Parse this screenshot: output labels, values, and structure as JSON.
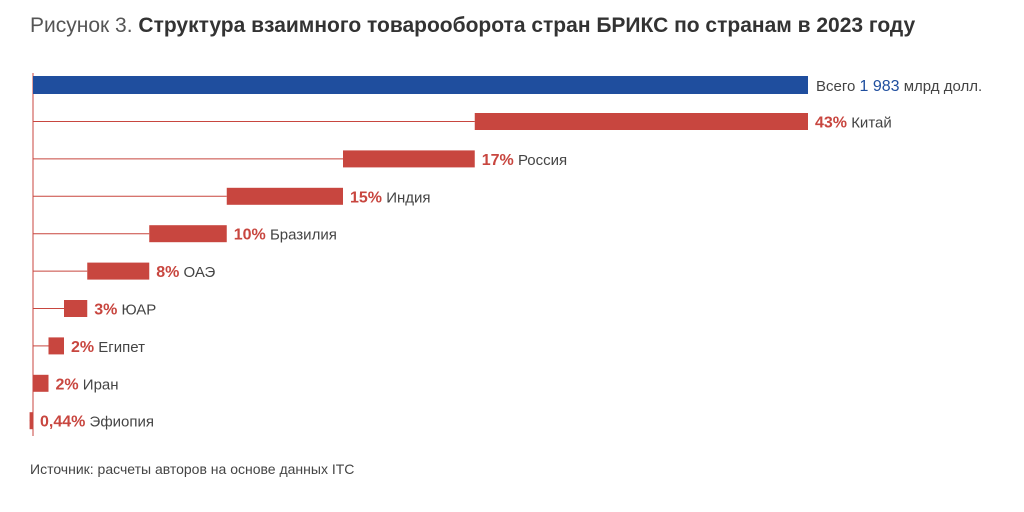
{
  "figure": {
    "prefix": "Рисунок 3.",
    "title": "Структура взаимного товарооборота стран БРИКС по странам в 2023 году",
    "source": "Источник: расчеты авторов на основе данных ITC"
  },
  "chart_data": {
    "type": "bar",
    "subtype": "cascade",
    "title": "Структура взаимного товарооборота стран БРИКС по странам в 2023 году",
    "total": {
      "prefix": "Всего",
      "value": "1 983",
      "unit": "млрд долл.",
      "color": "#1f4e9e"
    },
    "categories": [
      "Китай",
      "Россия",
      "Индия",
      "Бразилия",
      "ОАЭ",
      "ЮАР",
      "Египет",
      "Иран",
      "Эфиопия"
    ],
    "values": [
      43,
      17,
      15,
      10,
      8,
      3,
      2,
      2,
      0.44
    ],
    "value_labels": [
      "43%",
      "17%",
      "15%",
      "10%",
      "8%",
      "3%",
      "2%",
      "2%",
      "0,44%"
    ],
    "bar_color": "#c8463f",
    "label_color": "#c8463f",
    "xlim": [
      0,
      100
    ],
    "grid": false,
    "legend": "none"
  }
}
